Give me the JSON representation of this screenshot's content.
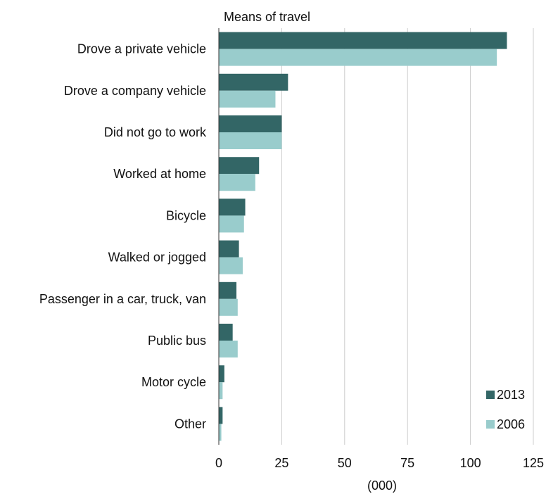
{
  "chart_data": {
    "type": "bar",
    "orientation": "horizontal",
    "title": "",
    "ylabel": "Means of travel",
    "xlabel": "(000)",
    "categories": [
      "Drove a private vehicle",
      "Drove a company vehicle",
      "Did not go to work",
      "Worked at home",
      "Bicycle",
      "Walked or jogged",
      "Passenger in a car, truck, van",
      "Public bus",
      "Motor cycle",
      "Other"
    ],
    "series": [
      {
        "name": "2013",
        "color": "#336666",
        "values": [
          114.5,
          27.5,
          25,
          16,
          10.5,
          8,
          7,
          5.5,
          2.2,
          1.5
        ]
      },
      {
        "name": "2006",
        "color": "#99cccc",
        "values": [
          110.5,
          22.5,
          25,
          14.5,
          10,
          9.5,
          7.5,
          7.5,
          1.5,
          1
        ]
      }
    ],
    "xlim": [
      0,
      125
    ],
    "xticks": [
      "0",
      "25",
      "50",
      "75",
      "100",
      "125"
    ],
    "grid": true,
    "legend_position": "bottom-right"
  }
}
